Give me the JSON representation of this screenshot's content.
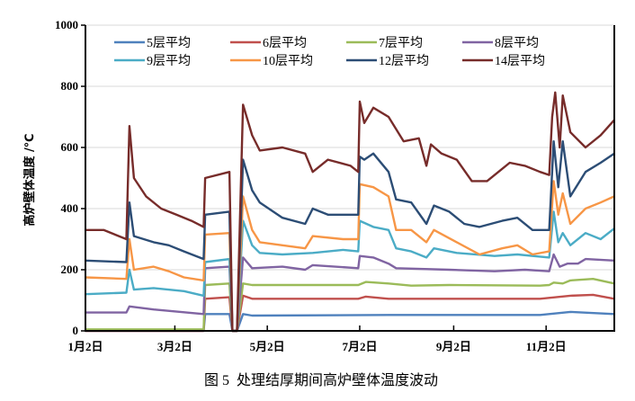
{
  "chart_data": {
    "type": "line",
    "title": "",
    "caption": "图 5  处理结厚期间高炉壁体温度波动",
    "xlabel": "",
    "ylabel": "高炉壁体温度 /℃",
    "ylim": [
      0,
      1000
    ],
    "yticks": [
      0,
      200,
      400,
      600,
      800,
      1000
    ],
    "xticks": [
      "01-02",
      "03-02",
      "05-02",
      "07-02",
      "09-02",
      "11-02"
    ],
    "xtick_labels": [
      "1月2日",
      "3月2日",
      "5月2日",
      "7月2日",
      "9月2日",
      "11月2日"
    ],
    "xlim": [
      "01-02",
      "12-17"
    ],
    "grid": "horizontal",
    "legend": "top",
    "series": [
      {
        "name": "5层平均",
        "color": "#4f81bd",
        "points": [
          [
            "01-02",
            0
          ],
          [
            "03-21",
            0
          ],
          [
            "03-22",
            55
          ],
          [
            "04-07",
            55
          ],
          [
            "04-09",
            0
          ],
          [
            "04-12",
            0
          ],
          [
            "04-16",
            55
          ],
          [
            "04-22",
            50
          ],
          [
            "07-21",
            52
          ],
          [
            "10-29",
            52
          ],
          [
            "11-18",
            62
          ],
          [
            "12-17",
            55
          ]
        ]
      },
      {
        "name": "6层平均",
        "color": "#c0504d",
        "points": [
          [
            "01-02",
            0
          ],
          [
            "03-21",
            0
          ],
          [
            "03-22",
            105
          ],
          [
            "04-07",
            110
          ],
          [
            "04-09",
            0
          ],
          [
            "04-12",
            0
          ],
          [
            "04-16",
            115
          ],
          [
            "04-22",
            105
          ],
          [
            "07-01",
            105
          ],
          [
            "07-06",
            112
          ],
          [
            "07-21",
            105
          ],
          [
            "10-29",
            105
          ],
          [
            "11-18",
            115
          ],
          [
            "12-03",
            118
          ],
          [
            "12-17",
            105
          ]
        ]
      },
      {
        "name": "7层平均",
        "color": "#9bbb59",
        "points": [
          [
            "01-02",
            5
          ],
          [
            "03-21",
            5
          ],
          [
            "03-22",
            150
          ],
          [
            "04-07",
            155
          ],
          [
            "04-09",
            0
          ],
          [
            "04-12",
            0
          ],
          [
            "04-16",
            155
          ],
          [
            "04-22",
            150
          ],
          [
            "07-01",
            150
          ],
          [
            "07-06",
            160
          ],
          [
            "07-21",
            155
          ],
          [
            "08-05",
            148
          ],
          [
            "08-30",
            150
          ],
          [
            "10-29",
            148
          ],
          [
            "11-04",
            150
          ],
          [
            "11-07",
            158
          ],
          [
            "11-13",
            155
          ],
          [
            "11-18",
            165
          ],
          [
            "12-03",
            170
          ],
          [
            "12-17",
            155
          ]
        ]
      },
      {
        "name": "8层平均",
        "color": "#8064a2",
        "points": [
          [
            "01-02",
            60
          ],
          [
            "01-29",
            60
          ],
          [
            "01-31",
            80
          ],
          [
            "02-16",
            70
          ],
          [
            "03-21",
            55
          ],
          [
            "03-22",
            205
          ],
          [
            "04-07",
            210
          ],
          [
            "04-09",
            0
          ],
          [
            "04-12",
            0
          ],
          [
            "04-16",
            240
          ],
          [
            "04-22",
            205
          ],
          [
            "05-12",
            210
          ],
          [
            "05-27",
            200
          ],
          [
            "06-01",
            215
          ],
          [
            "07-01",
            205
          ],
          [
            "07-02",
            245
          ],
          [
            "07-11",
            240
          ],
          [
            "07-21",
            220
          ],
          [
            "07-26",
            205
          ],
          [
            "08-30",
            200
          ],
          [
            "09-29",
            195
          ],
          [
            "10-19",
            200
          ],
          [
            "11-04",
            195
          ],
          [
            "11-07",
            250
          ],
          [
            "11-11",
            210
          ],
          [
            "11-16",
            220
          ],
          [
            "11-23",
            220
          ],
          [
            "11-28",
            235
          ],
          [
            "12-17",
            230
          ]
        ]
      },
      {
        "name": "9层平均",
        "color": "#4bacc6",
        "points": [
          [
            "01-02",
            120
          ],
          [
            "01-29",
            125
          ],
          [
            "01-31",
            200
          ],
          [
            "02-03",
            135
          ],
          [
            "02-16",
            140
          ],
          [
            "03-08",
            130
          ],
          [
            "03-21",
            115
          ],
          [
            "03-22",
            225
          ],
          [
            "04-07",
            235
          ],
          [
            "04-09",
            0
          ],
          [
            "04-12",
            0
          ],
          [
            "04-16",
            360
          ],
          [
            "04-22",
            280
          ],
          [
            "04-27",
            255
          ],
          [
            "05-12",
            250
          ],
          [
            "06-01",
            255
          ],
          [
            "06-21",
            265
          ],
          [
            "07-01",
            260
          ],
          [
            "07-02",
            360
          ],
          [
            "07-11",
            340
          ],
          [
            "07-21",
            330
          ],
          [
            "07-26",
            270
          ],
          [
            "08-05",
            260
          ],
          [
            "08-15",
            240
          ],
          [
            "08-20",
            270
          ],
          [
            "09-04",
            255
          ],
          [
            "09-29",
            245
          ],
          [
            "10-14",
            250
          ],
          [
            "11-04",
            240
          ],
          [
            "11-07",
            390
          ],
          [
            "11-10",
            290
          ],
          [
            "11-13",
            320
          ],
          [
            "11-18",
            280
          ],
          [
            "11-28",
            320
          ],
          [
            "12-08",
            300
          ],
          [
            "12-17",
            335
          ]
        ]
      },
      {
        "name": "10层平均",
        "color": "#f79646",
        "points": [
          [
            "01-02",
            175
          ],
          [
            "01-29",
            170
          ],
          [
            "01-31",
            300
          ],
          [
            "02-03",
            200
          ],
          [
            "02-16",
            210
          ],
          [
            "02-26",
            195
          ],
          [
            "03-08",
            175
          ],
          [
            "03-21",
            165
          ],
          [
            "03-22",
            315
          ],
          [
            "04-07",
            320
          ],
          [
            "04-09",
            0
          ],
          [
            "04-12",
            0
          ],
          [
            "04-16",
            440
          ],
          [
            "04-22",
            330
          ],
          [
            "04-27",
            290
          ],
          [
            "05-12",
            280
          ],
          [
            "05-27",
            270
          ],
          [
            "06-01",
            310
          ],
          [
            "06-21",
            300
          ],
          [
            "07-01",
            300
          ],
          [
            "07-02",
            480
          ],
          [
            "07-11",
            470
          ],
          [
            "07-21",
            440
          ],
          [
            "07-26",
            330
          ],
          [
            "08-05",
            330
          ],
          [
            "08-15",
            290
          ],
          [
            "08-20",
            330
          ],
          [
            "09-04",
            290
          ],
          [
            "09-19",
            250
          ],
          [
            "10-04",
            270
          ],
          [
            "10-14",
            280
          ],
          [
            "10-24",
            250
          ],
          [
            "11-04",
            260
          ],
          [
            "11-07",
            490
          ],
          [
            "11-10",
            380
          ],
          [
            "11-13",
            450
          ],
          [
            "11-18",
            350
          ],
          [
            "11-28",
            400
          ],
          [
            "12-08",
            420
          ],
          [
            "12-17",
            440
          ]
        ]
      },
      {
        "name": "12层平均",
        "color": "#2c4d75",
        "points": [
          [
            "01-02",
            230
          ],
          [
            "01-29",
            225
          ],
          [
            "01-31",
            420
          ],
          [
            "02-03",
            310
          ],
          [
            "02-16",
            290
          ],
          [
            "02-26",
            280
          ],
          [
            "03-08",
            260
          ],
          [
            "03-21",
            235
          ],
          [
            "03-22",
            380
          ],
          [
            "04-07",
            390
          ],
          [
            "04-09",
            0
          ],
          [
            "04-12",
            0
          ],
          [
            "04-16",
            560
          ],
          [
            "04-22",
            460
          ],
          [
            "04-27",
            420
          ],
          [
            "05-12",
            370
          ],
          [
            "05-27",
            350
          ],
          [
            "06-01",
            400
          ],
          [
            "06-11",
            380
          ],
          [
            "07-01",
            380
          ],
          [
            "07-02",
            570
          ],
          [
            "07-05",
            560
          ],
          [
            "07-11",
            580
          ],
          [
            "07-21",
            520
          ],
          [
            "07-26",
            430
          ],
          [
            "08-05",
            420
          ],
          [
            "08-15",
            350
          ],
          [
            "08-20",
            410
          ],
          [
            "08-30",
            390
          ],
          [
            "09-09",
            350
          ],
          [
            "09-19",
            340
          ],
          [
            "10-04",
            360
          ],
          [
            "10-14",
            370
          ],
          [
            "10-24",
            330
          ],
          [
            "11-04",
            330
          ],
          [
            "11-07",
            620
          ],
          [
            "11-10",
            470
          ],
          [
            "11-13",
            620
          ],
          [
            "11-18",
            440
          ],
          [
            "11-28",
            520
          ],
          [
            "12-08",
            550
          ],
          [
            "12-17",
            580
          ]
        ]
      },
      {
        "name": "14层平均",
        "color": "#772c2a",
        "points": [
          [
            "01-02",
            330
          ],
          [
            "01-14",
            330
          ],
          [
            "01-29",
            300
          ],
          [
            "01-31",
            670
          ],
          [
            "02-03",
            500
          ],
          [
            "02-11",
            440
          ],
          [
            "02-21",
            400
          ],
          [
            "03-03",
            380
          ],
          [
            "03-13",
            360
          ],
          [
            "03-21",
            340
          ],
          [
            "03-22",
            500
          ],
          [
            "04-07",
            520
          ],
          [
            "04-09",
            0
          ],
          [
            "04-12",
            0
          ],
          [
            "04-16",
            740
          ],
          [
            "04-22",
            640
          ],
          [
            "04-27",
            590
          ],
          [
            "05-12",
            600
          ],
          [
            "05-27",
            580
          ],
          [
            "06-01",
            520
          ],
          [
            "06-11",
            560
          ],
          [
            "06-26",
            540
          ],
          [
            "07-01",
            520
          ],
          [
            "07-02",
            750
          ],
          [
            "07-05",
            680
          ],
          [
            "07-11",
            730
          ],
          [
            "07-21",
            700
          ],
          [
            "07-31",
            620
          ],
          [
            "08-10",
            630
          ],
          [
            "08-15",
            540
          ],
          [
            "08-18",
            610
          ],
          [
            "08-25",
            580
          ],
          [
            "09-04",
            560
          ],
          [
            "09-14",
            490
          ],
          [
            "09-24",
            490
          ],
          [
            "10-04",
            530
          ],
          [
            "10-09",
            550
          ],
          [
            "10-19",
            540
          ],
          [
            "10-29",
            520
          ],
          [
            "11-04",
            510
          ],
          [
            "11-06",
            700
          ],
          [
            "11-08",
            780
          ],
          [
            "11-11",
            600
          ],
          [
            "11-13",
            770
          ],
          [
            "11-18",
            650
          ],
          [
            "11-28",
            600
          ],
          [
            "12-08",
            640
          ],
          [
            "12-17",
            690
          ]
        ]
      }
    ]
  }
}
